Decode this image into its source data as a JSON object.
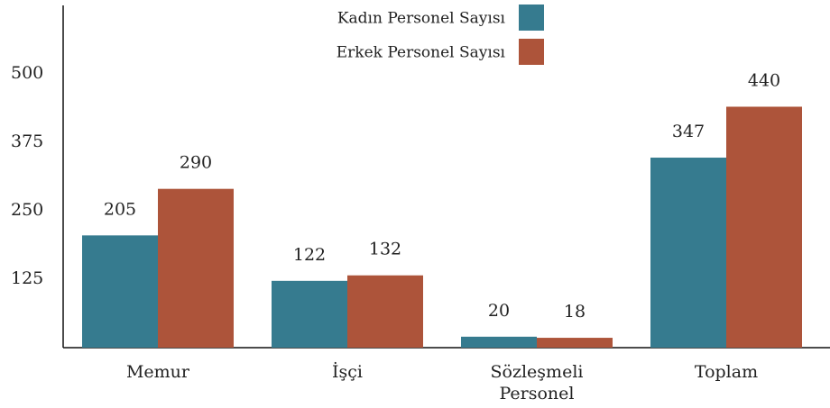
{
  "chart_data": {
    "type": "bar",
    "categories": [
      "Memur",
      "İşçi",
      "Sözleşmeli Personel",
      "Toplam"
    ],
    "series": [
      {
        "name": "Kadın Personel Sayısı",
        "color": "#367b8f",
        "values": [
          205,
          122,
          20,
          347
        ]
      },
      {
        "name": "Erkek Personel Sayısı",
        "color": "#ad543a",
        "values": [
          290,
          132,
          18,
          440
        ]
      }
    ],
    "ylim": [
      0,
      625
    ],
    "yticks": [
      125,
      250,
      375,
      500
    ],
    "grid": false,
    "legend": "top"
  }
}
